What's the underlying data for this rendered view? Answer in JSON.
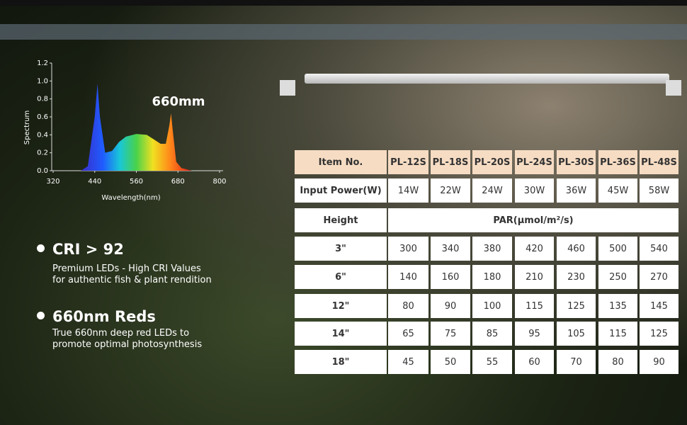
{
  "chart_data": {
    "type": "area",
    "annotation": "660mm",
    "y_label": "Spectrum",
    "x_label": "Wavelength(nm)",
    "x": [
      400,
      420,
      440,
      448,
      455,
      470,
      490,
      510,
      530,
      560,
      590,
      610,
      630,
      645,
      655,
      660,
      665,
      675,
      690,
      720
    ],
    "values": [
      0,
      0.05,
      0.6,
      0.97,
      0.6,
      0.2,
      0.22,
      0.32,
      0.38,
      0.41,
      0.4,
      0.35,
      0.3,
      0.3,
      0.5,
      0.64,
      0.45,
      0.1,
      0.03,
      0
    ],
    "xlim": [
      320,
      800
    ],
    "ylim": [
      0,
      1.2
    ],
    "xticks": [
      320,
      440,
      560,
      680,
      800
    ],
    "yticks": [
      {
        "value": 0,
        "label": "0.0"
      },
      0.2,
      0.4,
      0.6,
      0.8,
      {
        "value": 1,
        "label": "1.0"
      },
      1.2
    ]
  },
  "features": [
    {
      "title": "CRI > 92",
      "desc_lines": [
        "Premium LEDs - High CRI Values",
        "for authentic fish & plant rendition"
      ]
    },
    {
      "title": "660nm Reds",
      "desc_lines": [
        "True 660nm deep red LEDs to",
        "promote optimal photosynthesis"
      ]
    }
  ],
  "table": {
    "header": [
      "Item No.",
      "PL-12S",
      "PL-18S",
      "PL-20S",
      "PL-24S",
      "PL-30S",
      "PL-36S",
      "PL-48S"
    ],
    "power": [
      "Input Power(W)",
      "14W",
      "22W",
      "24W",
      "30W",
      "36W",
      "45W",
      "58W"
    ],
    "par_header": [
      "Height",
      "PAR(μmol/m²/s)"
    ],
    "rows": [
      [
        "3\"",
        300,
        340,
        380,
        420,
        460,
        500,
        540
      ],
      [
        "6\"",
        140,
        160,
        180,
        210,
        230,
        250,
        270
      ],
      [
        "12\"",
        80,
        90,
        100,
        115,
        125,
        135,
        145
      ],
      [
        "14\"",
        65,
        75,
        85,
        95,
        105,
        115,
        125
      ],
      [
        "18\"",
        45,
        50,
        55,
        60,
        70,
        80,
        90
      ]
    ]
  }
}
